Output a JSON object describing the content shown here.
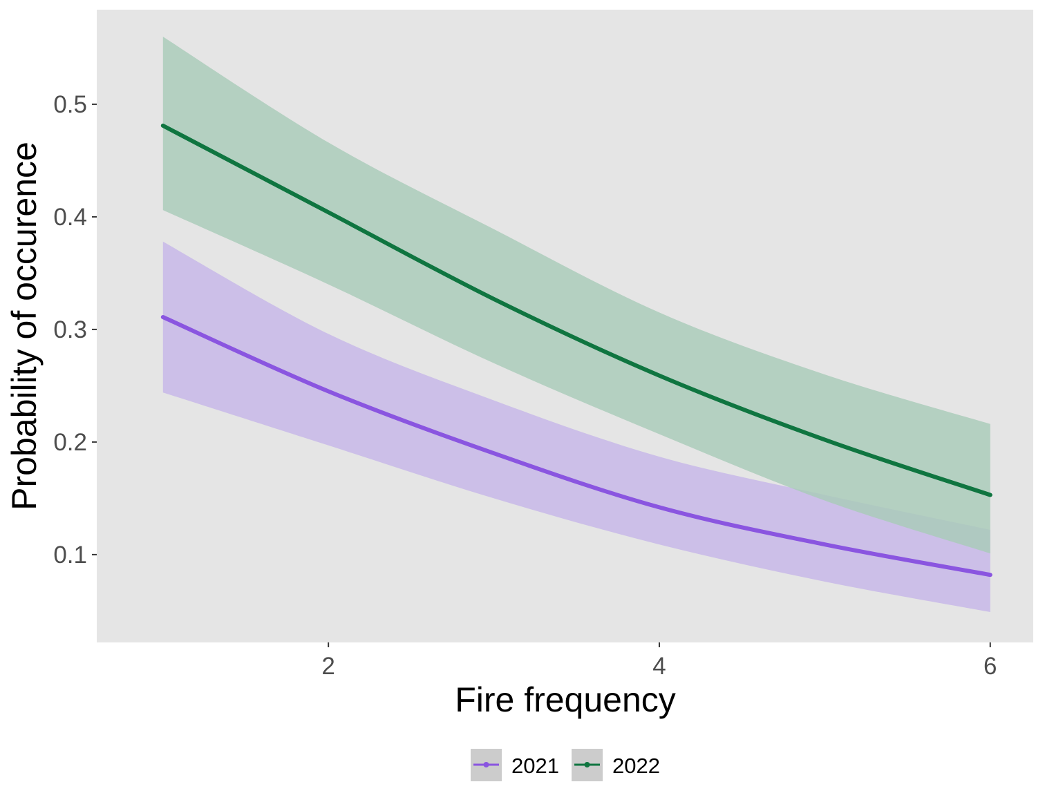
{
  "chart_data": {
    "type": "line",
    "xlabel": "Fire frequency",
    "ylabel": "Probability of occurence",
    "xlim": [
      0.6,
      6.26
    ],
    "ylim": [
      0.022,
      0.584
    ],
    "xticks": [
      2,
      4,
      6
    ],
    "xtick_labels": [
      "2",
      "4",
      "6"
    ],
    "yticks": [
      0.1,
      0.2,
      0.3,
      0.4,
      0.5
    ],
    "ytick_labels": [
      "0.1",
      "0.2",
      "0.3",
      "0.4",
      "0.5"
    ],
    "grid": false,
    "legend_position": "bottom",
    "x": [
      1,
      2,
      3,
      4,
      5,
      6
    ],
    "series": [
      {
        "name": "2021",
        "color": "#8a55e0",
        "ribbon_color": "#c6b6e8",
        "values": [
          0.311,
          0.245,
          0.19,
          0.142,
          0.109,
          0.082
        ],
        "lower": [
          0.244,
          0.197,
          0.15,
          0.109,
          0.076,
          0.049
        ],
        "upper": [
          0.378,
          0.296,
          0.237,
          0.187,
          0.153,
          0.122
        ]
      },
      {
        "name": "2022",
        "color": "#0f7540",
        "ribbon_color": "#a8cbb8",
        "values": [
          0.481,
          0.404,
          0.327,
          0.259,
          0.202,
          0.153
        ],
        "lower": [
          0.406,
          0.34,
          0.27,
          0.207,
          0.148,
          0.101
        ],
        "upper": [
          0.56,
          0.466,
          0.389,
          0.315,
          0.26,
          0.216
        ]
      }
    ]
  }
}
